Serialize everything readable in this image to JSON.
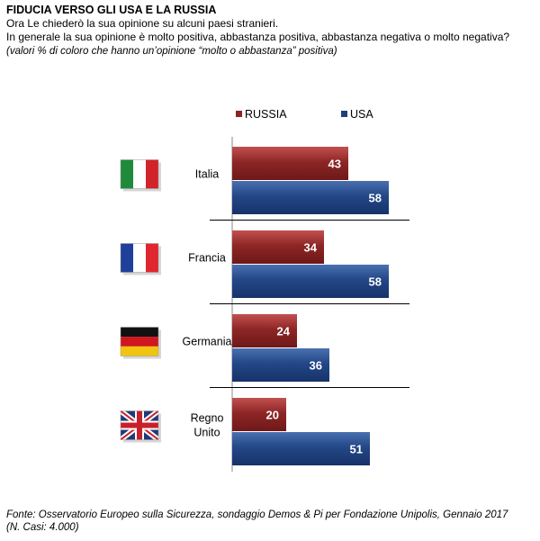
{
  "header": {
    "title": "FIDUCIA VERSO GLI USA E LA RUSSIA",
    "line1": "Ora Le chiederò la sua opinione su alcuni paesi stranieri.",
    "line2": "In generale la sua opinione è molto positiva, abbastanza positiva, abbastanza negativa o molto negativa?",
    "note": "(valori % di coloro che hanno un’opinione “molto o abbastanza” positiva)"
  },
  "chart_data": {
    "type": "bar",
    "orientation": "horizontal",
    "categories": [
      "Italia",
      "Francia",
      "Germania",
      "Regno Unito"
    ],
    "series": [
      {
        "name": "RUSSIA",
        "values": [
          43,
          34,
          24,
          20
        ],
        "color": "#8b2424"
      },
      {
        "name": "USA",
        "values": [
          58,
          58,
          36,
          51
        ],
        "color": "#1f3f7a"
      }
    ],
    "xlim": [
      0,
      100
    ],
    "legend": "top",
    "grid": false,
    "flags": [
      "italy-flag-icon",
      "france-flag-icon",
      "germany-flag-icon",
      "uk-flag-icon"
    ]
  },
  "footer": {
    "source": "Fonte: Osservatorio Europeo sulla Sicurezza, sondaggio Demos & Pi per Fondazione Unipolis, Gennaio 2017 (N. Casi: 4.000)"
  }
}
